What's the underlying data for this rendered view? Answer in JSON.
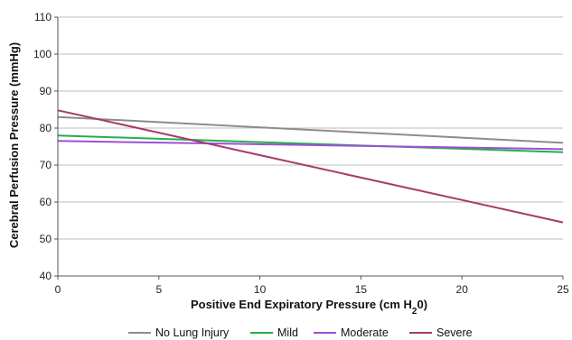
{
  "chart_data": {
    "type": "line",
    "title": "",
    "xlabel": "Positive End Expiratory Pressure (cm H",
    "xlabel_subscript": "2",
    "xlabel_suffix": "0)",
    "ylabel": "Cerebral Perfusion Pressure (mmHg)",
    "xlim": [
      0,
      25
    ],
    "ylim": [
      40,
      110
    ],
    "x_ticks": [
      0,
      5,
      10,
      15,
      20,
      25
    ],
    "y_ticks": [
      40,
      50,
      60,
      70,
      80,
      90,
      100,
      110
    ],
    "grid": "horizontal",
    "legend_position": "bottom",
    "x": [
      0,
      25
    ],
    "series": [
      {
        "name": "No Lung Injury",
        "values": [
          83,
          76
        ],
        "color": "#8c8c8c"
      },
      {
        "name": "Mild",
        "values": [
          78,
          73.5
        ],
        "color": "#22b04b"
      },
      {
        "name": "Moderate",
        "values": [
          76.5,
          74.3
        ],
        "color": "#9b4fd6"
      },
      {
        "name": "Severe",
        "values": [
          84.8,
          54.5
        ],
        "color": "#a63a6b"
      }
    ]
  }
}
